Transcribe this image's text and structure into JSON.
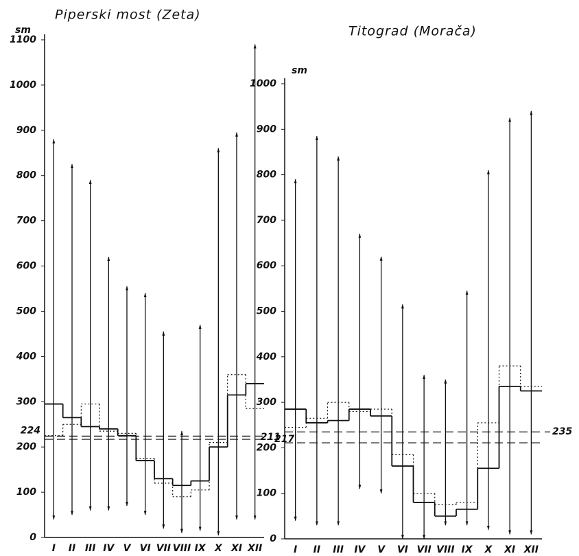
{
  "chart_data": [
    {
      "type": "step-range",
      "title": "Piperski most (Zeta)",
      "y_label": "sm",
      "categories": [
        "I",
        "II",
        "III",
        "IV",
        "V",
        "VI",
        "VII",
        "VIII",
        "IX",
        "X",
        "XI",
        "XII"
      ],
      "ylim": [
        0,
        1100
      ],
      "yticks": [
        0,
        100,
        200,
        300,
        400,
        500,
        600,
        700,
        800,
        900,
        1000,
        1100
      ],
      "series": [
        {
          "style": "solid",
          "color": "#111",
          "values": [
            295,
            265,
            245,
            240,
            225,
            170,
            130,
            115,
            125,
            200,
            315,
            340
          ]
        },
        {
          "style": "dotted",
          "color": "#111",
          "values": [
            225,
            250,
            295,
            235,
            230,
            175,
            120,
            90,
            105,
            210,
            360,
            285
          ]
        }
      ],
      "ranges": {
        "max": [
          880,
          825,
          790,
          620,
          555,
          540,
          455,
          235,
          470,
          860,
          895,
          1090
        ],
        "min": [
          40,
          50,
          60,
          60,
          70,
          50,
          20,
          10,
          15,
          5,
          40,
          40
        ]
      },
      "reference_lines": [
        {
          "value": 224,
          "label": "224",
          "side": "left"
        },
        {
          "value": 217,
          "label": "217",
          "side": "right"
        }
      ]
    },
    {
      "type": "step-range",
      "title": "Titograd (Morača)",
      "y_label": "sm",
      "categories": [
        "I",
        "II",
        "III",
        "IV",
        "V",
        "VI",
        "VII",
        "VIII",
        "IX",
        "X",
        "XI",
        "XII"
      ],
      "ylim": [
        0,
        1000
      ],
      "yticks": [
        0,
        100,
        200,
        300,
        400,
        500,
        600,
        700,
        800,
        900,
        1000
      ],
      "series": [
        {
          "style": "solid",
          "color": "#111",
          "values": [
            285,
            255,
            260,
            285,
            270,
            160,
            80,
            50,
            65,
            155,
            335,
            325
          ]
        },
        {
          "style": "dotted",
          "color": "#111",
          "values": [
            245,
            265,
            300,
            280,
            285,
            185,
            100,
            75,
            80,
            255,
            380,
            335
          ]
        }
      ],
      "ranges": {
        "max": [
          790,
          885,
          840,
          670,
          620,
          515,
          360,
          350,
          545,
          810,
          925,
          940
        ],
        "min": [
          40,
          30,
          30,
          110,
          100,
          0,
          0,
          30,
          30,
          20,
          10,
          10
        ]
      },
      "reference_lines": [
        {
          "value": 211,
          "label": "211",
          "side": "left"
        },
        {
          "value": 235,
          "label": "235",
          "side": "right"
        }
      ]
    }
  ]
}
